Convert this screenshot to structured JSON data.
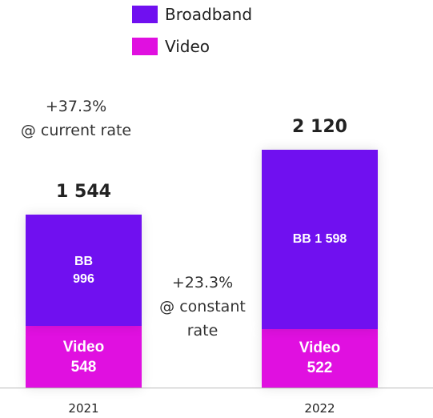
{
  "chart_data": {
    "type": "stacked_bar",
    "categories": [
      "2021",
      "2022"
    ],
    "series": [
      {
        "name": "Video",
        "color": "#e010e0",
        "values": [
          548,
          522
        ],
        "value_labels": [
          "Video\n548",
          "Video\n522"
        ]
      },
      {
        "name": "Broadband",
        "color": "#7010f0",
        "values": [
          996,
          1598
        ],
        "value_labels": [
          "BB\n996",
          "BB 1 598"
        ]
      }
    ],
    "totals": [
      1544,
      2120
    ],
    "total_labels": [
      "1 544",
      "2 120"
    ],
    "annotations": [
      "+37.3%\n@ current rate",
      "+23.3%\n@ constant\nrate"
    ],
    "legend_order": [
      1,
      0
    ]
  }
}
